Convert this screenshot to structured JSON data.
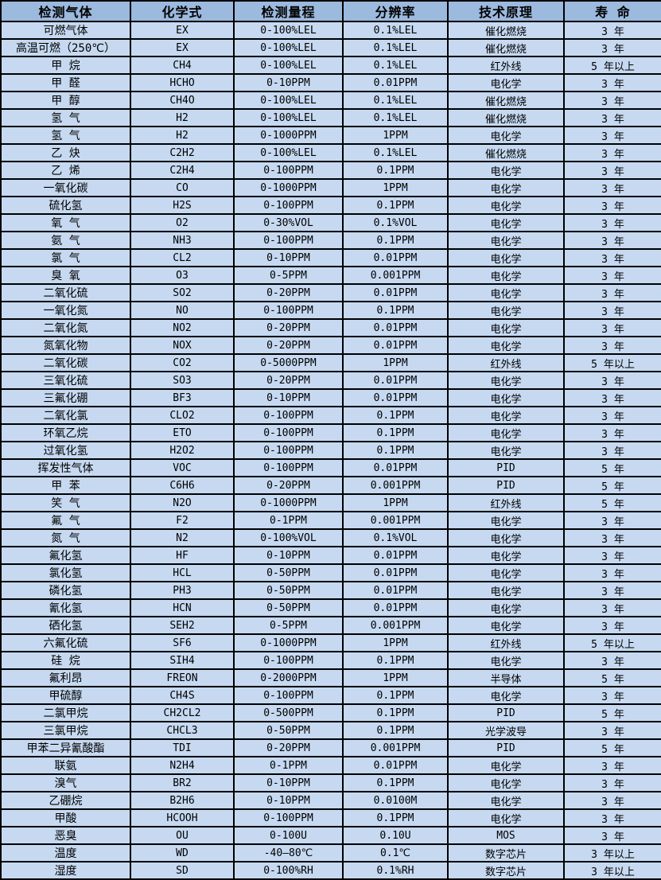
{
  "colors": {
    "header_bg": "#9CB9DE",
    "row_bg": "#C6D9F1",
    "border": "#000000",
    "text": "#000000"
  },
  "table": {
    "headers": [
      "检测气体",
      "化学式",
      "检测量程",
      "分辨率",
      "技术原理",
      "寿 命"
    ],
    "column_keys": [
      "gas",
      "formula",
      "range",
      "resolution",
      "principle",
      "lifespan"
    ],
    "rows": [
      [
        "可燃气体",
        "EX",
        "0-100%LEL",
        "0.1%LEL",
        "催化燃烧",
        "3 年"
      ],
      [
        "高温可燃（250℃）",
        "EX",
        "0-100%LEL",
        "0.1%LEL",
        "催化燃烧",
        "3 年"
      ],
      [
        "甲 烷",
        "CH4",
        "0-100%LEL",
        "0.1%LEL",
        "红外线",
        "5 年以上"
      ],
      [
        "甲 醛",
        "HCHO",
        "0-10PPM",
        "0.01PPM",
        "电化学",
        "3 年"
      ],
      [
        "甲 醇",
        "CH4O",
        "0-100%LEL",
        "0.1%LEL",
        "催化燃烧",
        "3 年"
      ],
      [
        "氢 气",
        "H2",
        "0-100%LEL",
        "0.1%LEL",
        "催化燃烧",
        "3 年"
      ],
      [
        "氢 气",
        "H2",
        "0-1000PPM",
        "1PPM",
        "电化学",
        "3 年"
      ],
      [
        "乙 炔",
        "C2H2",
        "0-100%LEL",
        "0.1%LEL",
        "催化燃烧",
        "3 年"
      ],
      [
        "乙 烯",
        "C2H4",
        "0-100PPM",
        "0.1PPM",
        "电化学",
        "3 年"
      ],
      [
        "一氧化碳",
        "CO",
        "0-1000PPM",
        "1PPM",
        "电化学",
        "3 年"
      ],
      [
        "硫化氢",
        "H2S",
        "0-100PPM",
        "0.1PPM",
        "电化学",
        "3 年"
      ],
      [
        "氧 气",
        "O2",
        "0-30%VOL",
        "0.1%VOL",
        "电化学",
        "3 年"
      ],
      [
        "氨 气",
        "NH3",
        "0-100PPM",
        "0.1PPM",
        "电化学",
        "3 年"
      ],
      [
        "氯 气",
        "CL2",
        "0-10PPM",
        "0.01PPM",
        "电化学",
        "3 年"
      ],
      [
        "臭 氧",
        "O3",
        "0-5PPM",
        "0.001PPM",
        "电化学",
        "3 年"
      ],
      [
        "二氧化硫",
        "SO2",
        "0-20PPM",
        "0.01PPM",
        "电化学",
        "3 年"
      ],
      [
        "一氧化氮",
        "NO",
        "0-100PPM",
        "0.1PPM",
        "电化学",
        "3 年"
      ],
      [
        "二氧化氮",
        "NO2",
        "0-20PPM",
        "0.01PPM",
        "电化学",
        "3 年"
      ],
      [
        "氮氧化物",
        "NOX",
        "0-20PPM",
        "0.01PPM",
        "电化学",
        "3 年"
      ],
      [
        "二氧化碳",
        "CO2",
        "0-5000PPM",
        "1PPM",
        "红外线",
        "5 年以上"
      ],
      [
        "三氧化硫",
        "SO3",
        "0-20PPM",
        "0.01PPM",
        "电化学",
        "3 年"
      ],
      [
        "三氟化硼",
        "BF3",
        "0-10PPM",
        "0.01PPM",
        "电化学",
        "3 年"
      ],
      [
        "二氧化氯",
        "CLO2",
        "0-100PPM",
        "0.1PPM",
        "电化学",
        "3 年"
      ],
      [
        "环氧乙烷",
        "ETO",
        "0-100PPM",
        "0.1PPM",
        "电化学",
        "3 年"
      ],
      [
        "过氧化氢",
        "H2O2",
        "0-100PPM",
        "0.1PPM",
        "电化学",
        "3 年"
      ],
      [
        "挥发性气体",
        "VOC",
        "0-100PPM",
        "0.01PPM",
        "PID",
        "5 年"
      ],
      [
        "甲 苯",
        "C6H6",
        "0-20PPM",
        "0.001PPM",
        "PID",
        "5 年"
      ],
      [
        "笑 气",
        "N2O",
        "0-1000PPM",
        "1PPM",
        "红外线",
        "5 年"
      ],
      [
        "氟 气",
        "F2",
        "0-1PPM",
        "0.001PPM",
        "电化学",
        "3 年"
      ],
      [
        "氮 气",
        "N2",
        "0-100%VOL",
        "0.1%VOL",
        "电化学",
        "3 年"
      ],
      [
        "氟化氢",
        "HF",
        "0-10PPM",
        "0.01PPM",
        "电化学",
        "3 年"
      ],
      [
        "氯化氢",
        "HCL",
        "0-50PPM",
        "0.01PPM",
        "电化学",
        "3 年"
      ],
      [
        "磷化氢",
        "PH3",
        "0-50PPM",
        "0.01PPM",
        "电化学",
        "3 年"
      ],
      [
        "氰化氢",
        "HCN",
        "0-50PPM",
        "0.01PPM",
        "电化学",
        "3 年"
      ],
      [
        "硒化氢",
        "SEH2",
        "0-5PPM",
        "0.001PPM",
        "电化学",
        "3 年"
      ],
      [
        "六氟化硫",
        "SF6",
        "0-1000PPM",
        "1PPM",
        "红外线",
        "5 年以上"
      ],
      [
        "硅 烷",
        "SIH4",
        "0-100PPM",
        "0.1PPM",
        "电化学",
        "3 年"
      ],
      [
        "氟利昂",
        "FREON",
        "0-2000PPM",
        "1PPM",
        "半导体",
        "5 年"
      ],
      [
        "甲硫醇",
        "CH4S",
        "0-100PPM",
        "0.1PPM",
        "电化学",
        "3 年"
      ],
      [
        "二氯甲烷",
        "CH2CL2",
        "0-500PPM",
        "0.1PPM",
        "PID",
        "5 年"
      ],
      [
        "三氯甲烷",
        "CHCL3",
        "0-50PPM",
        "0.1PPM",
        "光学波导",
        "3 年"
      ],
      [
        "甲苯二异氰酸酯",
        "TDI",
        "0-20PPM",
        "0.001PPM",
        "PID",
        "5 年"
      ],
      [
        "联氨",
        "N2H4",
        "0-1PPM",
        "0.01PPM",
        "电化学",
        "3 年"
      ],
      [
        "溴气",
        "BR2",
        "0-10PPM",
        "0.1PPM",
        "电化学",
        "3 年"
      ],
      [
        "乙硼烷",
        "B2H6",
        "0-10PPM",
        "0.0100M",
        "电化学",
        "3 年"
      ],
      [
        "甲酸",
        "HCOOH",
        "0-100PPM",
        "0.1PPM",
        "电化学",
        "3 年"
      ],
      [
        "恶臭",
        "OU",
        "0-100U",
        "0.10U",
        "MOS",
        "3 年"
      ],
      [
        "温度",
        "WD",
        "-40—80℃",
        "0.1℃",
        "数字芯片",
        "3 年以上"
      ],
      [
        "湿度",
        "SD",
        "0-100%RH",
        "0.1%RH",
        "数字芯片",
        "3 年以上"
      ]
    ]
  }
}
